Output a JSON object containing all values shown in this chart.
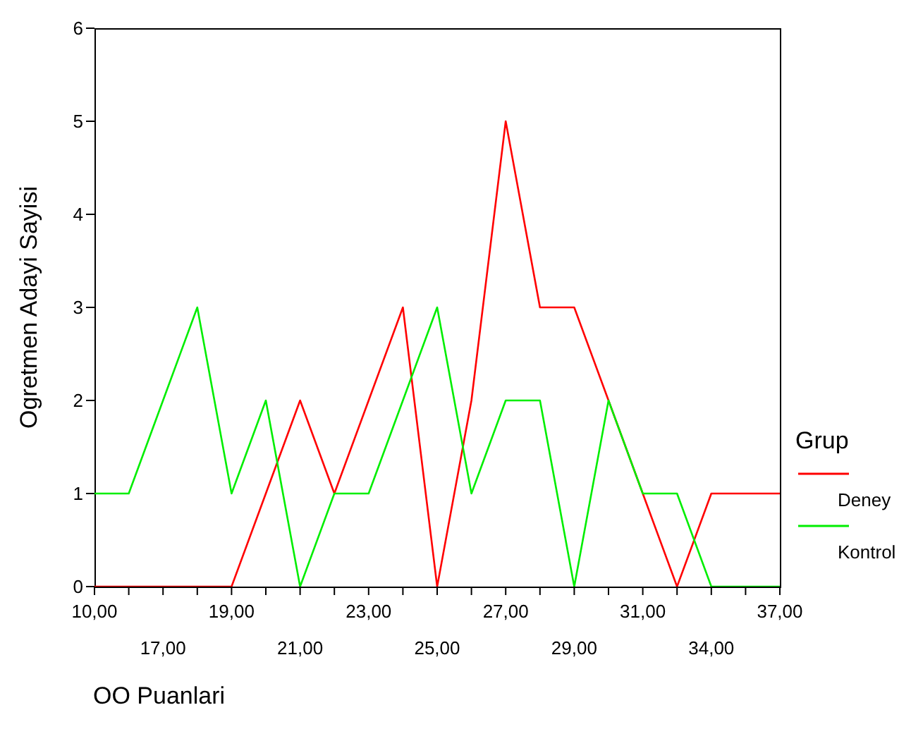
{
  "chart_data": {
    "type": "line",
    "xlabel": "OO Puanlari",
    "ylabel": "Ogretmen Adayi Sayisi",
    "legend_title": "Grup",
    "legend": "right",
    "categories": [
      "10,00",
      null,
      "17,00",
      null,
      "19,00",
      null,
      "21,00",
      null,
      "23,00",
      null,
      "25,00",
      null,
      "27,00",
      null,
      "29,00",
      null,
      "31,00",
      null,
      "34,00",
      null,
      "37,00"
    ],
    "series": [
      {
        "name": "Deney",
        "color": "#ff0000",
        "values": [
          0,
          0,
          0,
          0,
          0,
          1,
          2,
          1,
          2,
          3,
          0,
          2,
          5,
          3,
          3,
          2,
          1,
          0,
          1,
          1,
          1
        ]
      },
      {
        "name": "Kontrol",
        "color": "#00ee00",
        "values": [
          1,
          1,
          2,
          3,
          1,
          2,
          0,
          1,
          1,
          2,
          3,
          1,
          2,
          2,
          0,
          2,
          1,
          1,
          0,
          0,
          0
        ]
      }
    ],
    "ylim": [
      0,
      6
    ],
    "yticks": [
      0,
      1,
      2,
      3,
      4,
      5,
      6
    ],
    "grid": false
  }
}
